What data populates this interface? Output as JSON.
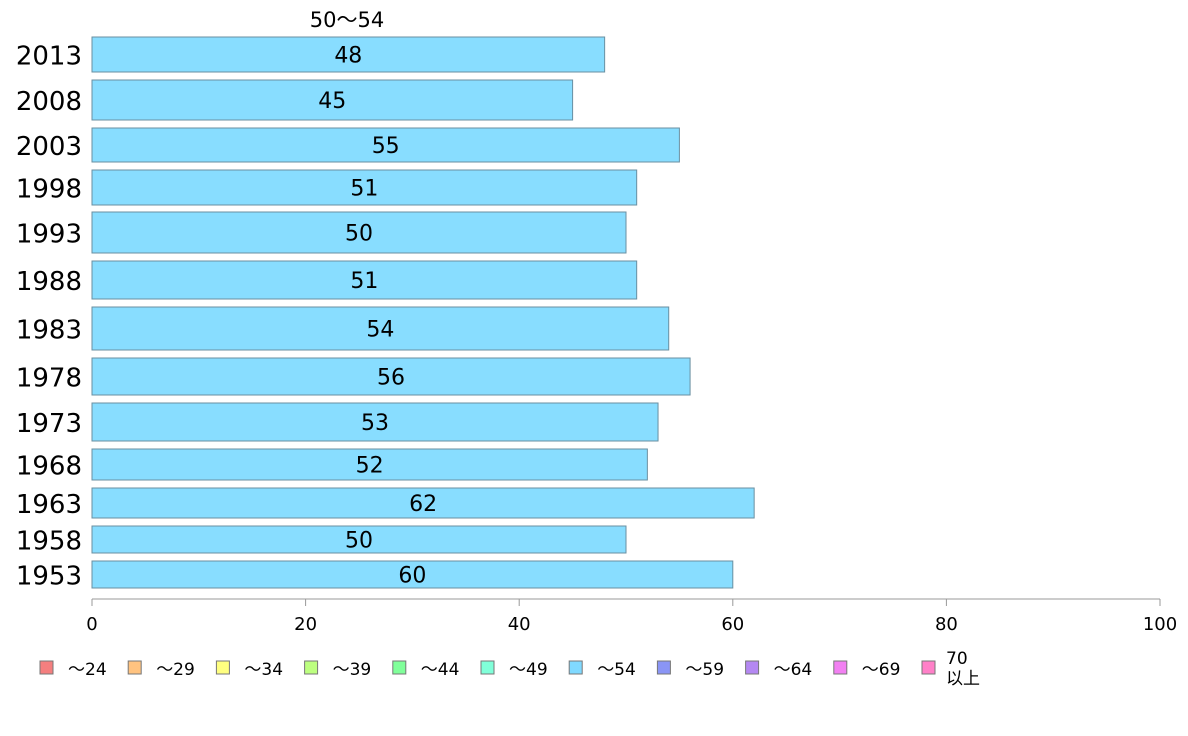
{
  "chart_data": {
    "type": "bar",
    "orientation": "horizontal",
    "column_header": "50〜54",
    "categories": [
      "2013",
      "2008",
      "2003",
      "1998",
      "1993",
      "1988",
      "1983",
      "1978",
      "1973",
      "1968",
      "1963",
      "1958",
      "1953"
    ],
    "series": [
      {
        "color": "#88DDFF",
        "values": [
          48,
          45,
          55,
          51,
          50,
          51,
          54,
          56,
          53,
          52,
          62,
          50,
          60
        ]
      }
    ],
    "xlim": [
      0,
      100
    ],
    "xticks": [
      "0",
      "20",
      "40",
      "60",
      "80",
      "100"
    ],
    "legend": {
      "placement": "bottom",
      "items": [
        {
          "label": "〜24",
          "color": "#F47F7F"
        },
        {
          "label": "〜29",
          "color": "#FFC380"
        },
        {
          "label": "〜34",
          "color": "#FFFF80"
        },
        {
          "label": "〜39",
          "color": "#BDFF80"
        },
        {
          "label": "〜44",
          "color": "#80FF9A"
        },
        {
          "label": "〜49",
          "color": "#80FFD9"
        },
        {
          "label": "〜54",
          "color": "#80D9FF"
        },
        {
          "label": "〜59",
          "color": "#8A95F5"
        },
        {
          "label": "〜64",
          "color": "#B488F2"
        },
        {
          "label": "〜69",
          "color": "#F280F2"
        },
        {
          "label": "70\n以上",
          "color": "#FF80C8"
        }
      ]
    }
  }
}
